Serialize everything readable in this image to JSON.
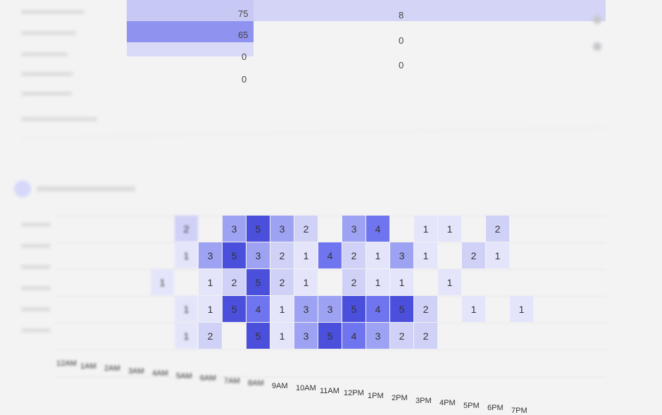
{
  "top_table": {
    "rows": [
      {
        "col1": "75",
        "col2": "8"
      },
      {
        "col1": "65",
        "col2": "0"
      },
      {
        "col1": "0",
        "col2": "0"
      },
      {
        "col1": "0",
        "col2": ""
      }
    ]
  },
  "heatmap": {
    "x_labels": [
      "12AM",
      "1AM",
      "2AM",
      "3AM",
      "4AM",
      "5AM",
      "6AM",
      "7AM",
      "8AM",
      "9AM",
      "10AM",
      "11AM",
      "12PM",
      "1PM",
      "2PM",
      "3PM",
      "4PM",
      "5PM",
      "6PM",
      "7PM"
    ],
    "cells": [
      [
        7,
        0,
        "2"
      ],
      [
        9,
        0,
        "3"
      ],
      [
        10,
        0,
        "5"
      ],
      [
        11,
        0,
        "3"
      ],
      [
        12,
        0,
        "2"
      ],
      [
        14,
        0,
        "3"
      ],
      [
        15,
        0,
        "4"
      ],
      [
        17,
        0,
        "1"
      ],
      [
        18,
        0,
        "1"
      ],
      [
        20,
        0,
        "2"
      ],
      [
        7,
        1,
        "1"
      ],
      [
        8,
        1,
        "3"
      ],
      [
        9,
        1,
        "5"
      ],
      [
        10,
        1,
        "3"
      ],
      [
        11,
        1,
        "2"
      ],
      [
        12,
        1,
        "1"
      ],
      [
        13,
        1,
        "4"
      ],
      [
        14,
        1,
        "2"
      ],
      [
        15,
        1,
        "1"
      ],
      [
        16,
        1,
        "3"
      ],
      [
        17,
        1,
        "1"
      ],
      [
        19,
        1,
        "2"
      ],
      [
        20,
        1,
        "1"
      ],
      [
        6,
        2,
        "1"
      ],
      [
        8,
        2,
        "1"
      ],
      [
        9,
        2,
        "2"
      ],
      [
        10,
        2,
        "5"
      ],
      [
        11,
        2,
        "2"
      ],
      [
        12,
        2,
        "1"
      ],
      [
        14,
        2,
        "2"
      ],
      [
        15,
        2,
        "1"
      ],
      [
        16,
        2,
        "1"
      ],
      [
        18,
        2,
        "1"
      ],
      [
        7,
        3,
        "1"
      ],
      [
        8,
        3,
        "1"
      ],
      [
        9,
        3,
        "5"
      ],
      [
        10,
        3,
        "4"
      ],
      [
        11,
        3,
        "1"
      ],
      [
        12,
        3,
        "3"
      ],
      [
        13,
        3,
        "3"
      ],
      [
        14,
        3,
        "5"
      ],
      [
        15,
        3,
        "4"
      ],
      [
        16,
        3,
        "5"
      ],
      [
        17,
        3,
        "2"
      ],
      [
        19,
        3,
        "1"
      ],
      [
        21,
        3,
        "1"
      ],
      [
        7,
        4,
        "1"
      ],
      [
        8,
        4,
        "2"
      ],
      [
        10,
        4,
        "5"
      ],
      [
        11,
        4,
        "1"
      ],
      [
        12,
        4,
        "3"
      ],
      [
        13,
        4,
        "5"
      ],
      [
        14,
        4,
        "4"
      ],
      [
        15,
        4,
        "3"
      ],
      [
        16,
        4,
        "2"
      ],
      [
        17,
        4,
        "2"
      ]
    ]
  }
}
